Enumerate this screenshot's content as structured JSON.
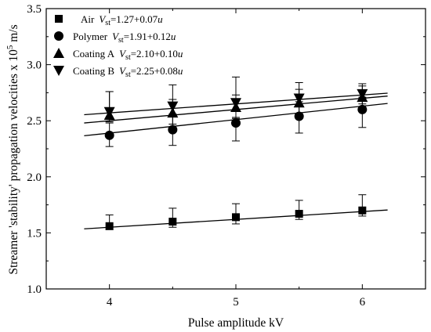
{
  "chart_data": {
    "type": "scatter",
    "title": "",
    "xlabel": "Pulse amplitude kV",
    "ylabel_parts": [
      "Streamer 'stability' propagation velocities x 10",
      "5",
      " m/s"
    ],
    "xlim": [
      3.5,
      6.5
    ],
    "ylim": [
      1.0,
      3.5
    ],
    "xticks": [
      "4",
      "5",
      "6"
    ],
    "yticks": [
      "1.0",
      "1.5",
      "2.0",
      "2.5",
      "3.0",
      "3.5"
    ],
    "grid": false,
    "legend_position": "top-left",
    "fit_x_range": [
      3.8,
      6.2
    ],
    "x": [
      4,
      4.5,
      5,
      5.5,
      6
    ],
    "series": [
      {
        "name": "Air",
        "marker": "square",
        "formula": "=1.27+0.07u",
        "values": [
          1.56,
          1.6,
          1.64,
          1.67,
          1.7
        ],
        "err_plus": [
          0.1,
          0.12,
          0.12,
          0.12,
          0.14
        ],
        "err_minus": [
          0.03,
          0.05,
          0.06,
          0.05,
          0.05
        ],
        "fit": {
          "intercept": 1.27,
          "slope": 0.07
        }
      },
      {
        "name": "Polymer",
        "marker": "circle",
        "formula": "=1.91+0.12u",
        "values": [
          2.37,
          2.42,
          2.48,
          2.54,
          2.6
        ],
        "err_plus": [
          0.11,
          0.13,
          0.12,
          0.13,
          0.11
        ],
        "err_minus": [
          0.1,
          0.14,
          0.16,
          0.15,
          0.16
        ],
        "fit": {
          "intercept": 1.91,
          "slope": 0.12
        }
      },
      {
        "name": "Coating A",
        "marker": "triangle-up",
        "formula": "=2.10+0.10u",
        "values": [
          2.55,
          2.57,
          2.62,
          2.66,
          2.71
        ],
        "err_plus": [
          0.21,
          0.12,
          0.11,
          0.12,
          0.1
        ],
        "err_minus": [
          0.06,
          0.1,
          0.09,
          0.1,
          0.06
        ],
        "fit": {
          "intercept": 2.1,
          "slope": 0.1
        }
      },
      {
        "name": "Coating B",
        "marker": "triangle-down",
        "formula": "=2.25+0.08u",
        "values": [
          2.58,
          2.63,
          2.66,
          2.7,
          2.74
        ],
        "err_plus": [
          0.18,
          0.19,
          0.23,
          0.14,
          0.09
        ],
        "err_minus": [
          0.05,
          0.07,
          0.14,
          0.06,
          0.04
        ],
        "fit": {
          "intercept": 2.25,
          "slope": 0.08
        }
      }
    ],
    "legend_formula_prefix": "V",
    "legend_formula_subscript": "st"
  }
}
